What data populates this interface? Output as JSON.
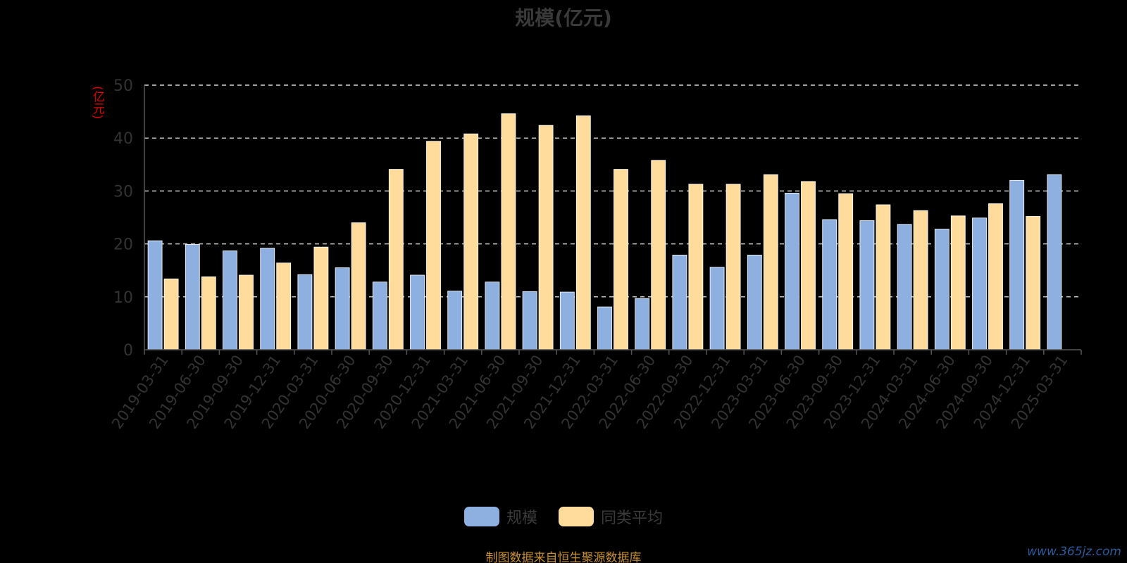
{
  "colors": {
    "background": "#000000",
    "series_1": "#8eb0e0",
    "series_2": "#ffdc9c",
    "grid": "#ffffff",
    "axis": "#555555",
    "tick_text": "#333333",
    "unit_text": "#e00000",
    "footer_text": "#c8902c"
  },
  "footer": "制图数据来自恒生聚源数据库",
  "watermark": "www.365jz.com",
  "chart_data": {
    "type": "bar",
    "title": "规模(亿元)",
    "ylabel": "(亿元)",
    "xlabel": "",
    "ylim": [
      0,
      50
    ],
    "yticks": [
      0,
      10,
      20,
      30,
      40,
      50
    ],
    "grid": true,
    "legend_position": "bottom",
    "categories": [
      "2019-03-31",
      "2019-06-30",
      "2019-09-30",
      "2019-12-31",
      "2020-03-31",
      "2020-06-30",
      "2020-09-30",
      "2020-12-31",
      "2021-03-31",
      "2021-06-30",
      "2021-09-30",
      "2021-12-31",
      "2022-03-31",
      "2022-06-30",
      "2022-09-30",
      "2022-12-31",
      "2023-03-31",
      "2023-06-30",
      "2023-09-30",
      "2023-12-31",
      "2024-03-31",
      "2024-06-30",
      "2024-09-30",
      "2024-12-31",
      "2025-03-31"
    ],
    "series": [
      {
        "name": "规模",
        "values": [
          20.6,
          19.9,
          18.7,
          19.2,
          14.2,
          15.5,
          12.8,
          14.1,
          11.1,
          12.8,
          11.0,
          10.9,
          8.1,
          9.7,
          17.9,
          15.6,
          17.9,
          29.6,
          24.6,
          24.4,
          23.7,
          22.8,
          24.9,
          32.0,
          33.1
        ]
      },
      {
        "name": "同类平均",
        "values": [
          13.4,
          13.8,
          14.1,
          16.4,
          19.4,
          24.0,
          34.1,
          39.4,
          40.8,
          44.6,
          42.4,
          44.2,
          34.1,
          35.8,
          31.3,
          31.3,
          33.1,
          31.8,
          29.5,
          27.4,
          26.3,
          25.3,
          27.6,
          25.2,
          null
        ]
      }
    ]
  }
}
